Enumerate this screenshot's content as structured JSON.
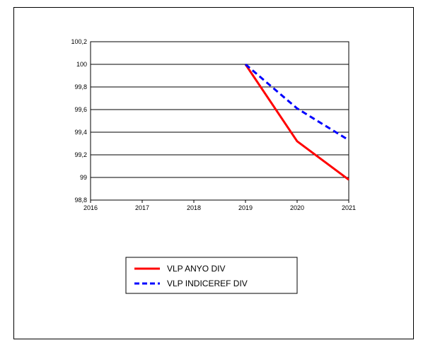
{
  "chart_data": {
    "type": "line",
    "title": "",
    "xlabel": "",
    "ylabel": "",
    "x": [
      2016,
      2017,
      2018,
      2019,
      2020,
      2021
    ],
    "xlim": [
      2016,
      2021
    ],
    "ylim": [
      98.8,
      100.2
    ],
    "y_ticks": [
      100.2,
      100,
      99.8,
      99.6,
      99.4,
      99.2,
      99,
      98.8
    ],
    "y_tick_labels": [
      "100,2",
      "100",
      "99,8",
      "99,6",
      "99,4",
      "99,2",
      "99",
      "98,8"
    ],
    "x_tick_labels": [
      "2016",
      "2017",
      "2018",
      "2019",
      "2020",
      "2021"
    ],
    "grid": "horizontal",
    "legend_position": "bottom-left",
    "series": [
      {
        "name": "VLP ANYO DIV",
        "color": "#ff0000",
        "dash": "solid",
        "points": [
          [
            2019,
            100
          ],
          [
            2020,
            99.32
          ],
          [
            2021,
            98.98
          ]
        ]
      },
      {
        "name": "VLP INDICEREF DIV",
        "color": "#0000ff",
        "dash": "dashed",
        "points": [
          [
            2019,
            100
          ],
          [
            2020,
            99.61
          ],
          [
            2021,
            99.33
          ]
        ]
      }
    ]
  }
}
